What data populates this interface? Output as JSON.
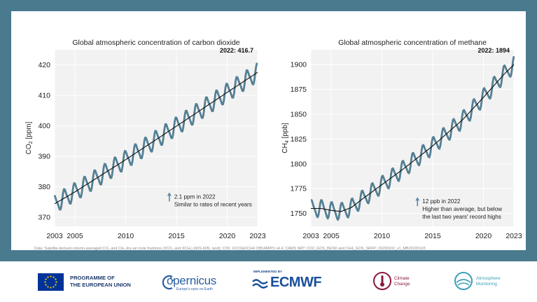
{
  "chart_data": [
    {
      "type": "line",
      "title": "Global atmospheric concentration of carbon dioxide",
      "ylabel_main": "CO",
      "ylabel_sub": "2",
      "ylabel_unit": " [ppm]",
      "xlim": [
        2003,
        2023
      ],
      "ylim": [
        367,
        425
      ],
      "x_ticks": [
        2003,
        2005,
        2010,
        2015,
        2020,
        2023
      ],
      "y_ticks": [
        370,
        380,
        390,
        400,
        410,
        420
      ],
      "trend_points": [
        [
          2003,
          374.4
        ],
        [
          2005,
          378.3
        ],
        [
          2010,
          388.9
        ],
        [
          2015,
          399.9
        ],
        [
          2020,
          411.0
        ],
        [
          2023,
          417.6
        ]
      ],
      "seasonal_amplitude": 2.8,
      "phase_offset": 0.25,
      "grid": true,
      "line_color": "#5b8aa0",
      "trend_color": "#111111",
      "end_label": "2022: 416.7",
      "annotation_lines": [
        "2.1 ppm in 2022",
        "Similar to rates of recent years"
      ],
      "annotation_pos": [
        2014.3,
        377
      ]
    },
    {
      "type": "line",
      "title": "Global atmospheric concentration of methane",
      "ylabel_main": "CH",
      "ylabel_sub": "4",
      "ylabel_unit": " [ppb]",
      "xlim": [
        2003,
        2023
      ],
      "ylim": [
        1737,
        1915
      ],
      "x_ticks": [
        2003,
        2005,
        2010,
        2015,
        2020,
        2023
      ],
      "y_ticks": [
        1750,
        1775,
        1800,
        1825,
        1850,
        1875,
        1900
      ],
      "trend_points": [
        [
          2003,
          1755
        ],
        [
          2004,
          1755
        ],
        [
          2005,
          1753
        ],
        [
          2006,
          1752
        ],
        [
          2007,
          1756
        ],
        [
          2008,
          1764
        ],
        [
          2010,
          1779
        ],
        [
          2012,
          1794
        ],
        [
          2015,
          1818
        ],
        [
          2018,
          1845
        ],
        [
          2020,
          1867
        ],
        [
          2022,
          1890
        ],
        [
          2023,
          1900
        ]
      ],
      "seasonal_amplitude": 8,
      "phase_offset": 0.15,
      "grid": true,
      "line_color": "#5b8aa0",
      "trend_color": "#111111",
      "end_label": "2022: 1894",
      "annotation_lines": [
        "12 ppb in 2022",
        "Higher than average, but below",
        "the last two years' record highs"
      ],
      "annotation_pos": [
        2013.5,
        1763
      ]
    }
  ],
  "source_note": "Data: Satellite-derived column-averaged CO₂ and CH₄ dry-air mole fractions (XCO₂ and XCH₄) (60S-60N, land); C3S: XCO2&XCH4 OBS4MIPS v4.4; CAMS NRT: CO2_GOS_BESD and CH4_GOS_SRFP; 20230102_v1_MB20230103",
  "logos": {
    "eu_line1": "PROGRAMME OF",
    "eu_line2": "THE EUROPEAN UNION",
    "copernicus_word": "opernicus",
    "copernicus_tag": "Europe's eyes on Earth",
    "ecmwf_implemented": "IMPLEMENTED BY",
    "ecmwf_word": "ECMWF",
    "climate_line1": "Climate",
    "climate_line2": "Change",
    "atmos_line1": "Atmosphere",
    "atmos_line2": "Monitoring"
  }
}
